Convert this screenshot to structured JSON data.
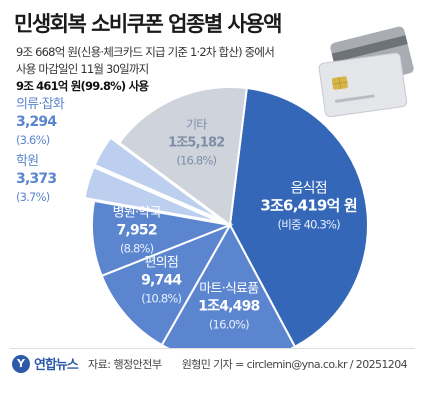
{
  "header": {
    "title": "민생회복 소비쿠폰 업종별 사용액",
    "subtitle_line1": "9조 668억 원(신용·체크카드 지급 기준 1·2차 합산) 중에서",
    "subtitle_line2": "사용 마감일인 11월 30일까지",
    "subtitle_line3": "9조 461억 원(99.8%) 사용"
  },
  "footer": {
    "logo_text": "연합뉴스",
    "source": "자료: 행정안전부",
    "credit": "원형민 기자 = circlemin@yna.co.kr / 20251204"
  },
  "colors": {
    "dark_blue": "#3567b8",
    "mid_blue": "#5b86cf",
    "light_blue": "#8fb0e4",
    "pale_blue": "#bccfef",
    "gray": "#cfd4dc",
    "label_blue": "#5b86cf",
    "label_gray": "#7f8ea7"
  },
  "chart_data": {
    "type": "pie",
    "title": "민생회복 소비쿠폰 업종별 사용액",
    "slices": [
      {
        "name": "음식점",
        "amount": "3조6,419억 원",
        "value": 36419,
        "share": "(비중 40.3%)",
        "percent": 40.3
      },
      {
        "name": "마트·식료품",
        "amount": "1조4,498",
        "value": 14498,
        "share": "(16.0%)",
        "percent": 16.0
      },
      {
        "name": "편의점",
        "amount": "9,744",
        "value": 9744,
        "share": "(10.8%)",
        "percent": 10.8
      },
      {
        "name": "병원·약국",
        "amount": "7,952",
        "value": 7952,
        "share": "(8.8%)",
        "percent": 8.8
      },
      {
        "name": "학원",
        "amount": "3,373",
        "value": 3373,
        "share": "(3.7%)",
        "percent": 3.7
      },
      {
        "name": "의류·잡화",
        "amount": "3,294",
        "value": 3294,
        "share": "(3.6%)",
        "percent": 3.6
      },
      {
        "name": "기타",
        "amount": "1조5,182",
        "value": 15182,
        "share": "(16.8%)",
        "percent": 16.8
      }
    ]
  }
}
